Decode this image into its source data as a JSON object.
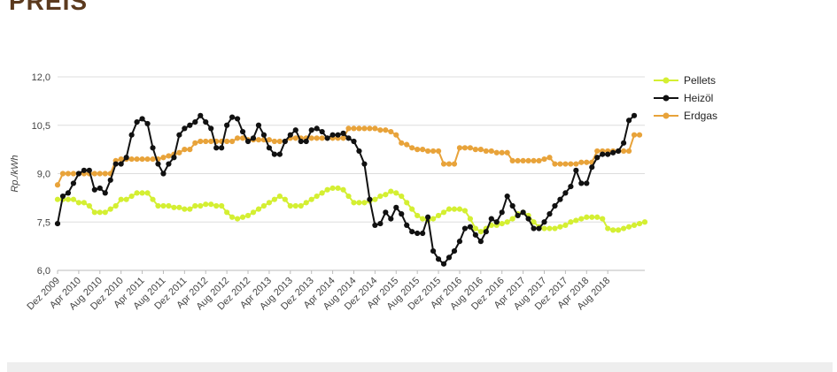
{
  "page": {
    "heading": "PREIS"
  },
  "chart_data": {
    "type": "line",
    "title": "",
    "xlabel": "",
    "ylabel": "Rp./kWh",
    "ylim": [
      6.0,
      12.0
    ],
    "y_ticks": [
      "12,0",
      "10,5",
      "9,0",
      "7,5",
      "6,0"
    ],
    "y_tick_values": [
      12.0,
      10.5,
      9.0,
      7.5,
      6.0
    ],
    "x_range": [
      "2009-12",
      "2018-12"
    ],
    "x_tick_labels": [
      "Dez 2009",
      "Apr 2010",
      "Aug 2010",
      "Dez 2010",
      "Apr 2011",
      "Aug 2011",
      "Dez 2011",
      "Apr 2012",
      "Aug 2012",
      "Dez 2012",
      "Apr 2013",
      "Aug 2013",
      "Dez 2013",
      "Apr 2014",
      "Aug 2014",
      "Dez 2014",
      "Apr 2015",
      "Aug 2015",
      "Dez 2015",
      "Apr 2016",
      "Aug 2016",
      "Dez 2016",
      "Apr 2017",
      "Aug 2017",
      "Dez 2017",
      "Apr 2018",
      "Aug 2018"
    ],
    "grid": "horizontal",
    "legend_position": "right",
    "series": [
      {
        "name": "Pellets",
        "color": "#d4ef32",
        "values": [
          8.2,
          8.2,
          8.2,
          8.2,
          8.1,
          8.1,
          8.0,
          7.8,
          7.8,
          7.8,
          7.9,
          8.0,
          8.2,
          8.2,
          8.3,
          8.4,
          8.4,
          8.4,
          8.2,
          8.0,
          8.0,
          8.0,
          7.95,
          7.95,
          7.9,
          7.9,
          8.0,
          8.0,
          8.05,
          8.05,
          8.0,
          8.0,
          7.8,
          7.65,
          7.6,
          7.65,
          7.7,
          7.8,
          7.9,
          8.0,
          8.1,
          8.2,
          8.3,
          8.2,
          8.0,
          8.0,
          8.0,
          8.1,
          8.2,
          8.3,
          8.4,
          8.5,
          8.55,
          8.55,
          8.5,
          8.3,
          8.1,
          8.1,
          8.1,
          8.15,
          8.2,
          8.3,
          8.35,
          8.45,
          8.4,
          8.3,
          8.1,
          7.9,
          7.7,
          7.6,
          7.55,
          7.6,
          7.7,
          7.8,
          7.9,
          7.9,
          7.9,
          7.85,
          7.6,
          7.3,
          7.2,
          7.3,
          7.4,
          7.4,
          7.45,
          7.5,
          7.6,
          7.75,
          7.8,
          7.7,
          7.5,
          7.35,
          7.3,
          7.3,
          7.3,
          7.35,
          7.4,
          7.5,
          7.55,
          7.6,
          7.65,
          7.65,
          7.65,
          7.6,
          7.3,
          7.25,
          7.25,
          7.3,
          7.35,
          7.4,
          7.45,
          7.5
        ]
      },
      {
        "name": "Heizöl",
        "color": "#111111",
        "values": [
          7.45,
          8.3,
          8.4,
          8.7,
          9.0,
          9.1,
          9.1,
          8.5,
          8.55,
          8.4,
          8.8,
          9.3,
          9.3,
          9.5,
          10.2,
          10.6,
          10.7,
          10.55,
          9.8,
          9.3,
          9.0,
          9.3,
          9.5,
          10.2,
          10.4,
          10.5,
          10.6,
          10.8,
          10.6,
          10.4,
          9.8,
          9.8,
          10.5,
          10.75,
          10.7,
          10.3,
          10.0,
          10.1,
          10.5,
          10.2,
          9.8,
          9.6,
          9.6,
          10.0,
          10.2,
          10.35,
          10.0,
          10.0,
          10.35,
          10.4,
          10.3,
          10.1,
          10.2,
          10.2,
          10.25,
          10.1,
          10.0,
          9.7,
          9.3,
          8.2,
          7.4,
          7.45,
          7.8,
          7.6,
          7.95,
          7.75,
          7.4,
          7.2,
          7.15,
          7.15,
          7.65,
          6.6,
          6.35,
          6.2,
          6.4,
          6.6,
          6.9,
          7.3,
          7.35,
          7.1,
          6.9,
          7.2,
          7.6,
          7.5,
          7.8,
          8.3,
          8.0,
          7.7,
          7.8,
          7.6,
          7.3,
          7.3,
          7.5,
          7.75,
          8.0,
          8.2,
          8.4,
          8.6,
          9.1,
          8.7,
          8.7,
          9.2,
          9.5,
          9.6,
          9.6,
          9.65,
          9.7,
          9.95,
          10.65,
          10.8
        ]
      },
      {
        "name": "Erdgas",
        "color": "#e8a33a",
        "values": [
          8.65,
          9.0,
          9.0,
          9.0,
          9.0,
          9.0,
          9.0,
          9.0,
          9.0,
          9.0,
          9.0,
          9.4,
          9.45,
          9.45,
          9.45,
          9.45,
          9.45,
          9.45,
          9.45,
          9.45,
          9.5,
          9.55,
          9.6,
          9.65,
          9.75,
          9.75,
          9.95,
          10.0,
          10.0,
          10.0,
          10.0,
          10.0,
          10.0,
          10.0,
          10.1,
          10.1,
          10.05,
          10.05,
          10.05,
          10.05,
          10.05,
          10.0,
          10.0,
          10.0,
          10.1,
          10.1,
          10.1,
          10.1,
          10.1,
          10.1,
          10.1,
          10.1,
          10.1,
          10.1,
          10.1,
          10.4,
          10.4,
          10.4,
          10.4,
          10.4,
          10.4,
          10.35,
          10.35,
          10.3,
          10.2,
          9.95,
          9.9,
          9.8,
          9.75,
          9.75,
          9.7,
          9.7,
          9.7,
          9.3,
          9.3,
          9.3,
          9.8,
          9.8,
          9.8,
          9.75,
          9.75,
          9.7,
          9.7,
          9.65,
          9.65,
          9.65,
          9.4,
          9.4,
          9.4,
          9.4,
          9.4,
          9.4,
          9.45,
          9.5,
          9.3,
          9.3,
          9.3,
          9.3,
          9.3,
          9.35,
          9.35,
          9.35,
          9.7,
          9.7,
          9.7,
          9.7,
          9.7,
          9.7,
          9.7,
          10.2,
          10.2
        ]
      }
    ]
  }
}
